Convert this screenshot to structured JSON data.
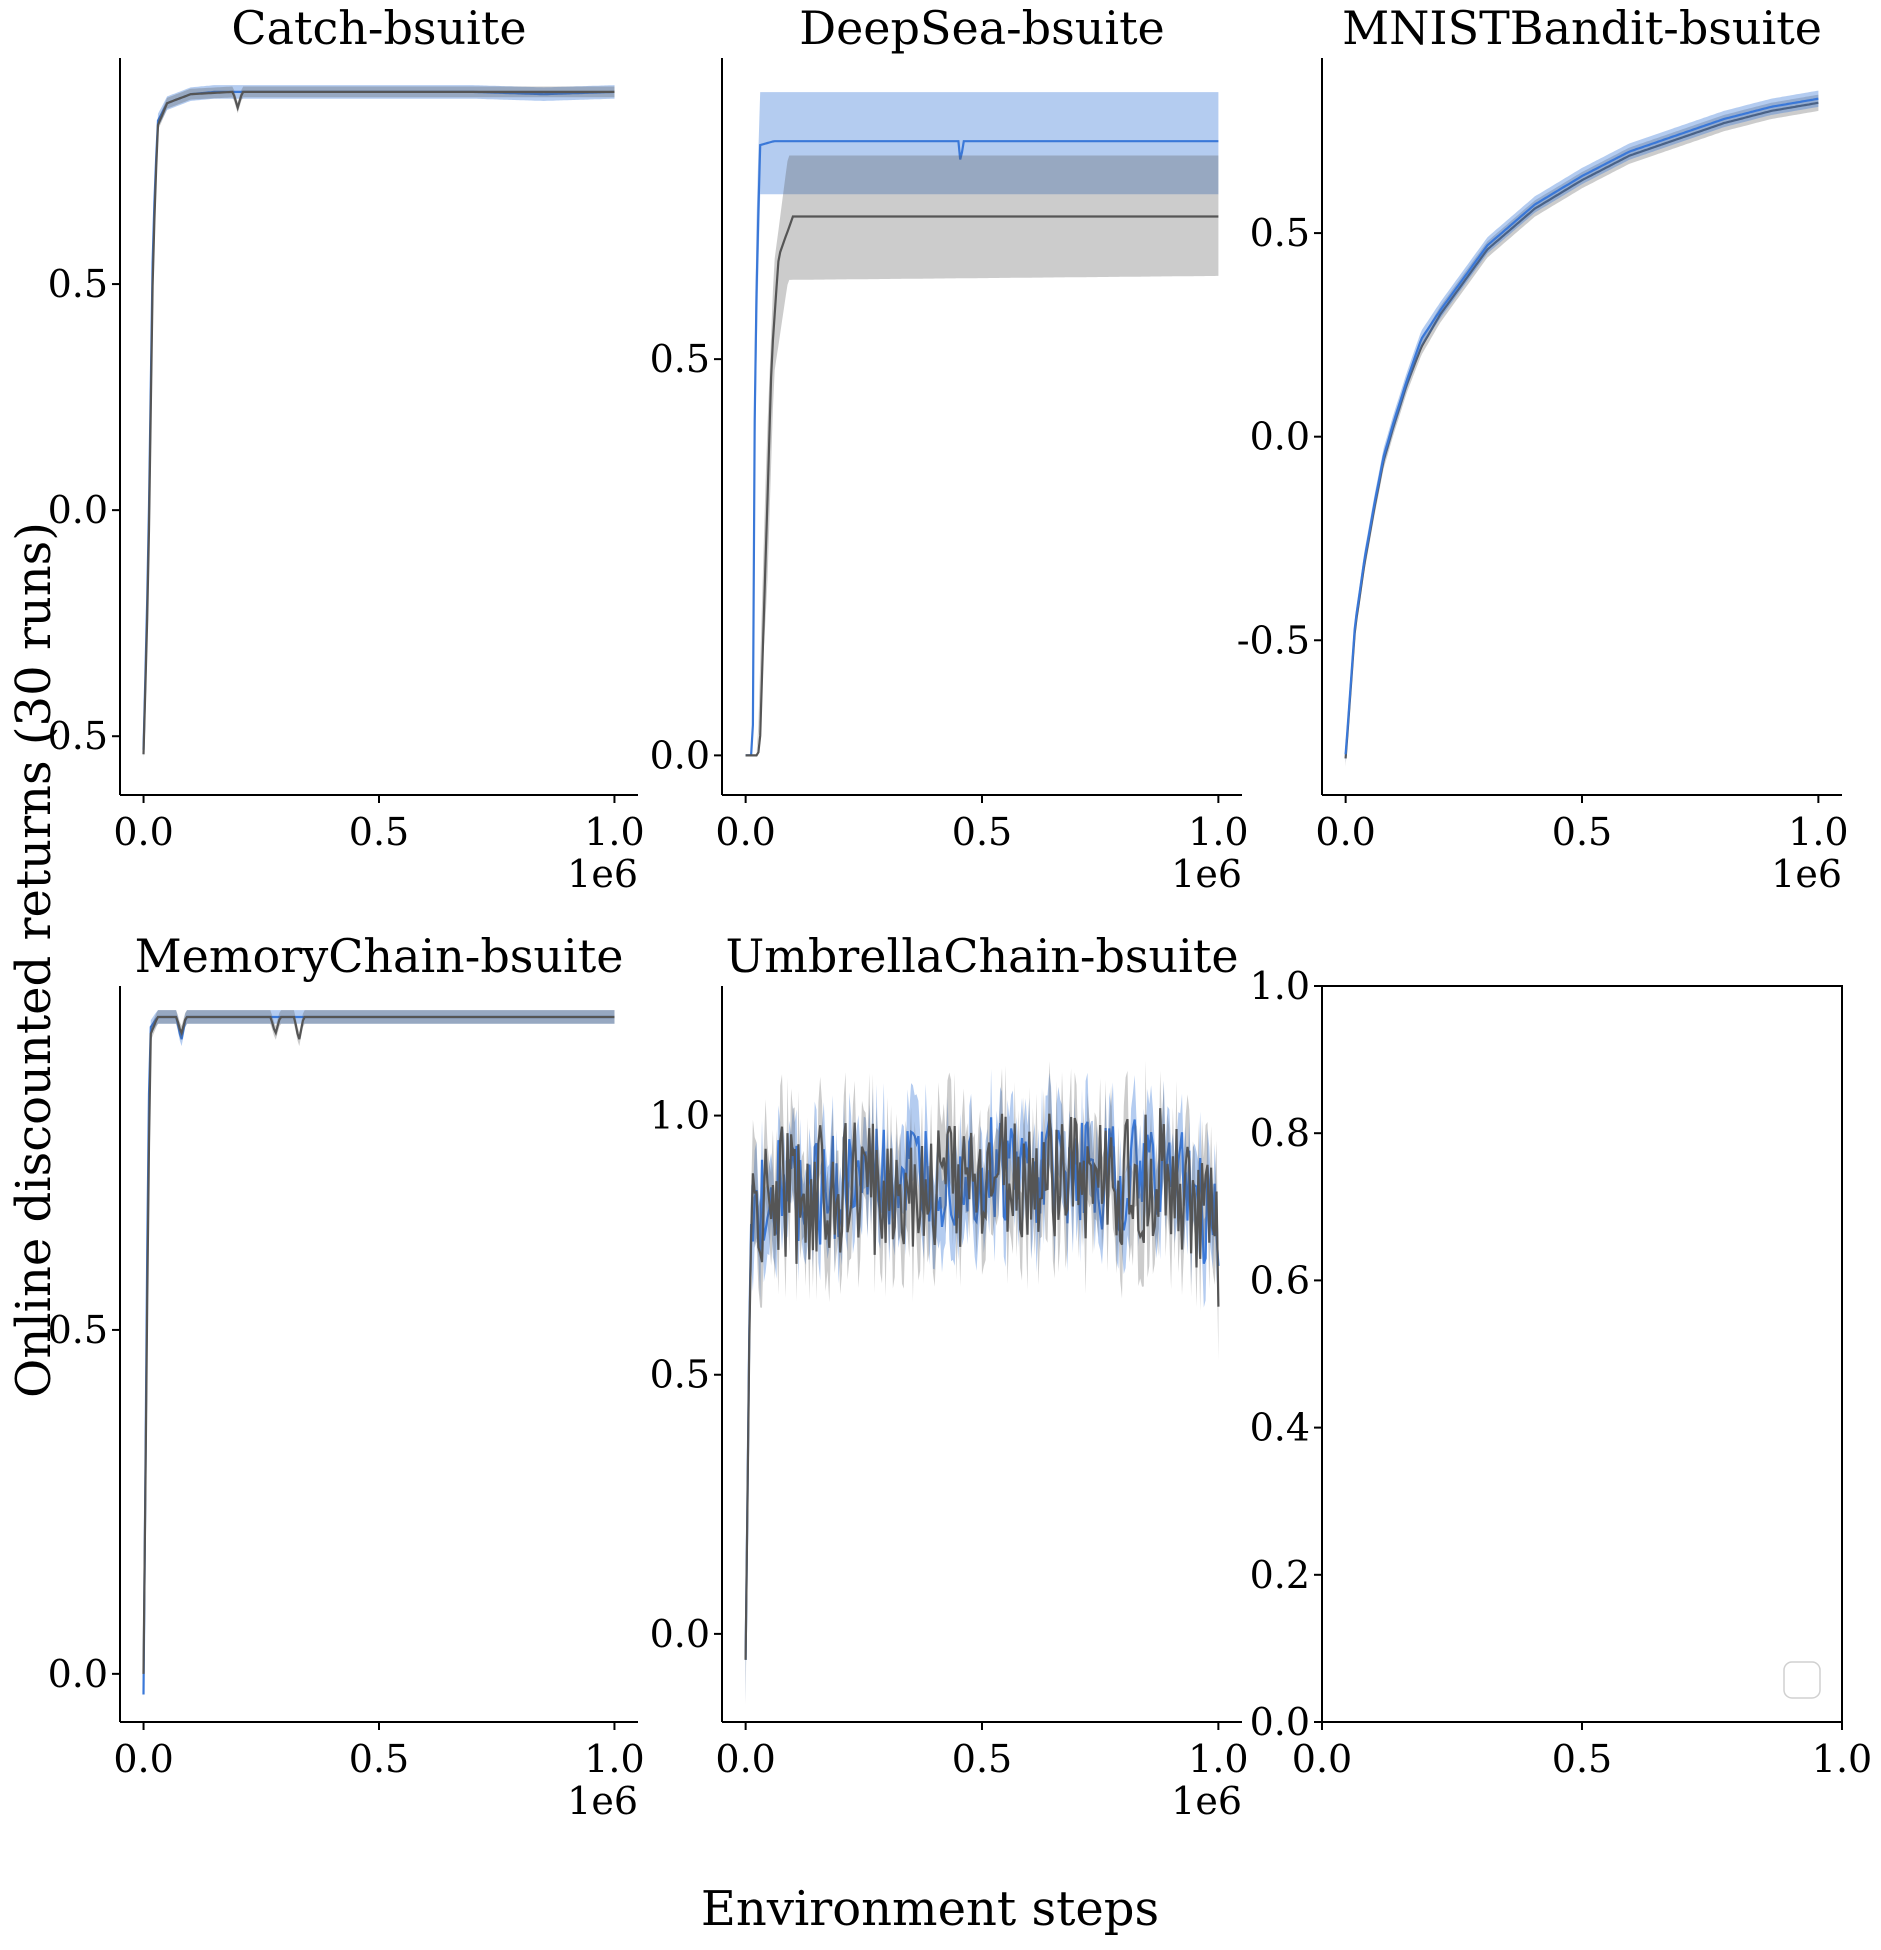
{
  "figure": {
    "xlabel": "Environment steps",
    "ylabel": "Online discounted returns (30 runs)"
  },
  "colors": {
    "blue": "#3a78d8",
    "gray": "#555555"
  },
  "chart_data": [
    {
      "type": "line",
      "title": "Catch-bsuite",
      "xlim": [
        -0.05,
        1.05
      ],
      "ylim": [
        -0.63,
        1.0
      ],
      "xticks": [
        0.0,
        0.5,
        1.0
      ],
      "xtick_labels": [
        "0.0",
        "0.5",
        "1.0"
      ],
      "yticks": [
        -0.5,
        0.0,
        0.5
      ],
      "ytick_labels": [
        "-0.5",
        "0.0",
        "0.5"
      ],
      "x_multiplier": "1e6",
      "series": [
        {
          "color": "blue",
          "points": [
            [
              0.0,
              -0.53
            ],
            [
              0.01,
              -0.1
            ],
            [
              0.02,
              0.6
            ],
            [
              0.03,
              0.86
            ],
            [
              0.05,
              0.9
            ],
            [
              0.1,
              0.92
            ],
            [
              0.15,
              0.925
            ],
            [
              0.2,
              0.925
            ],
            [
              0.3,
              0.925
            ],
            [
              0.5,
              0.925
            ],
            [
              0.7,
              0.925
            ],
            [
              0.85,
              0.92
            ],
            [
              1.0,
              0.925
            ]
          ],
          "band": 0.015
        },
        {
          "color": "gray",
          "points": [
            [
              0.0,
              -0.54
            ],
            [
              0.01,
              -0.15
            ],
            [
              0.02,
              0.55
            ],
            [
              0.03,
              0.85
            ],
            [
              0.05,
              0.9
            ],
            [
              0.1,
              0.92
            ],
            [
              0.19,
              0.925
            ],
            [
              0.2,
              0.89
            ],
            [
              0.21,
              0.925
            ],
            [
              0.3,
              0.925
            ],
            [
              0.5,
              0.925
            ],
            [
              0.7,
              0.925
            ],
            [
              1.0,
              0.925
            ]
          ],
          "band": 0.012
        }
      ]
    },
    {
      "type": "line",
      "title": "DeepSea-bsuite",
      "xlim": [
        -0.05,
        1.05
      ],
      "ylim": [
        -0.05,
        0.88
      ],
      "xticks": [
        0.0,
        0.5,
        1.0
      ],
      "xtick_labels": [
        "0.0",
        "0.5",
        "1.0"
      ],
      "yticks": [
        0.0,
        0.5
      ],
      "ytick_labels": [
        "0.0",
        "0.5"
      ],
      "x_multiplier": "1e6",
      "series": [
        {
          "color": "blue",
          "points": [
            [
              0.0,
              0.0
            ],
            [
              0.015,
              0.0
            ],
            [
              0.02,
              0.5
            ],
            [
              0.03,
              0.77
            ],
            [
              0.06,
              0.775
            ],
            [
              0.45,
              0.775
            ],
            [
              0.455,
              0.745
            ],
            [
              0.46,
              0.775
            ],
            [
              1.0,
              0.775
            ]
          ],
          "band_lo": [
            [
              0.0,
              0.0
            ],
            [
              0.015,
              0.0
            ],
            [
              0.02,
              0.4
            ],
            [
              0.03,
              0.708
            ],
            [
              1.0,
              0.708
            ]
          ],
          "band_hi": [
            [
              0.0,
              0.0
            ],
            [
              0.015,
              0.0
            ],
            [
              0.02,
              0.6
            ],
            [
              0.03,
              0.837
            ],
            [
              1.0,
              0.837
            ]
          ]
        },
        {
          "color": "gray",
          "points": [
            [
              0.0,
              0.0
            ],
            [
              0.025,
              0.0
            ],
            [
              0.03,
              0.01
            ],
            [
              0.045,
              0.3
            ],
            [
              0.055,
              0.5
            ],
            [
              0.07,
              0.63
            ],
            [
              0.1,
              0.68
            ],
            [
              0.3,
              0.68
            ],
            [
              1.0,
              0.68
            ]
          ],
          "band_lo": [
            [
              0.0,
              0.0
            ],
            [
              0.025,
              0.0
            ],
            [
              0.045,
              0.2
            ],
            [
              0.06,
              0.48
            ],
            [
              0.09,
              0.6
            ],
            [
              1.0,
              0.605
            ]
          ],
          "band_hi": [
            [
              0.0,
              0.0
            ],
            [
              0.025,
              0.0
            ],
            [
              0.045,
              0.4
            ],
            [
              0.06,
              0.62
            ],
            [
              0.09,
              0.757
            ],
            [
              1.0,
              0.757
            ]
          ]
        }
      ]
    },
    {
      "type": "line",
      "title": "MNISTBandit-bsuite",
      "xlim": [
        -0.05,
        1.05
      ],
      "ylim": [
        -0.88,
        0.93
      ],
      "xticks": [
        0.0,
        0.5,
        1.0
      ],
      "xtick_labels": [
        "0.0",
        "0.5",
        "1.0"
      ],
      "yticks": [
        -0.5,
        0.0,
        0.5
      ],
      "ytick_labels": [
        "-0.5",
        "0.0",
        "0.5"
      ],
      "x_multiplier": "1e6",
      "series": [
        {
          "color": "gray",
          "points": [
            [
              0.0,
              -0.79
            ],
            [
              0.01,
              -0.63
            ],
            [
              0.02,
              -0.47
            ],
            [
              0.04,
              -0.31
            ],
            [
              0.06,
              -0.18
            ],
            [
              0.08,
              -0.06
            ],
            [
              0.1,
              0.02
            ],
            [
              0.13,
              0.13
            ],
            [
              0.16,
              0.22
            ],
            [
              0.2,
              0.3
            ],
            [
              0.25,
              0.38
            ],
            [
              0.3,
              0.46
            ],
            [
              0.35,
              0.51
            ],
            [
              0.4,
              0.56
            ],
            [
              0.5,
              0.63
            ],
            [
              0.6,
              0.69
            ],
            [
              0.7,
              0.73
            ],
            [
              0.8,
              0.77
            ],
            [
              0.9,
              0.8
            ],
            [
              1.0,
              0.82
            ]
          ],
          "band": 0.02
        },
        {
          "color": "blue",
          "points": [
            [
              0.0,
              -0.78
            ],
            [
              0.01,
              -0.62
            ],
            [
              0.02,
              -0.46
            ],
            [
              0.04,
              -0.3
            ],
            [
              0.06,
              -0.17
            ],
            [
              0.08,
              -0.05
            ],
            [
              0.1,
              0.03
            ],
            [
              0.13,
              0.14
            ],
            [
              0.16,
              0.24
            ],
            [
              0.2,
              0.31
            ],
            [
              0.25,
              0.39
            ],
            [
              0.3,
              0.47
            ],
            [
              0.35,
              0.52
            ],
            [
              0.4,
              0.57
            ],
            [
              0.5,
              0.64
            ],
            [
              0.6,
              0.7
            ],
            [
              0.7,
              0.74
            ],
            [
              0.8,
              0.78
            ],
            [
              0.9,
              0.81
            ],
            [
              1.0,
              0.83
            ]
          ],
          "band": 0.02
        }
      ]
    },
    {
      "type": "line",
      "title": "MemoryChain-bsuite",
      "xlim": [
        -0.05,
        1.05
      ],
      "ylim": [
        -0.07,
        1.0
      ],
      "xticks": [
        0.0,
        0.5,
        1.0
      ],
      "xtick_labels": [
        "0.0",
        "0.5",
        "1.0"
      ],
      "yticks": [
        0.0,
        0.5
      ],
      "ytick_labels": [
        "0.0",
        "0.5"
      ],
      "x_multiplier": "1e6",
      "series": [
        {
          "color": "blue",
          "points": [
            [
              0.0,
              -0.03
            ],
            [
              0.01,
              0.8
            ],
            [
              0.015,
              0.94
            ],
            [
              0.03,
              0.955
            ],
            [
              0.07,
              0.955
            ],
            [
              0.08,
              0.92
            ],
            [
              0.09,
              0.955
            ],
            [
              0.3,
              0.955
            ],
            [
              0.6,
              0.955
            ],
            [
              1.0,
              0.955
            ]
          ],
          "band": 0.01
        },
        {
          "color": "gray",
          "points": [
            [
              0.0,
              0.0
            ],
            [
              0.01,
              0.7
            ],
            [
              0.015,
              0.93
            ],
            [
              0.03,
              0.955
            ],
            [
              0.07,
              0.955
            ],
            [
              0.08,
              0.93
            ],
            [
              0.09,
              0.955
            ],
            [
              0.27,
              0.955
            ],
            [
              0.28,
              0.93
            ],
            [
              0.29,
              0.955
            ],
            [
              0.32,
              0.955
            ],
            [
              0.33,
              0.92
            ],
            [
              0.34,
              0.955
            ],
            [
              0.6,
              0.955
            ],
            [
              1.0,
              0.955
            ]
          ],
          "band": 0.01
        }
      ]
    },
    {
      "type": "line",
      "title": "UmbrellaChain-bsuite",
      "xlim": [
        -0.05,
        1.05
      ],
      "ylim": [
        -0.17,
        1.25
      ],
      "xticks": [
        0.0,
        0.5,
        1.0
      ],
      "xtick_labels": [
        "0.0",
        "0.5",
        "1.0"
      ],
      "yticks": [
        0.0,
        0.5,
        1.0
      ],
      "ytick_labels": [
        "0.0",
        "0.5",
        "1.0"
      ],
      "x_multiplier": "1e6",
      "series": [
        {
          "color": "blue",
          "points": [
            [
              0.0,
              -0.05
            ],
            [
              0.01,
              0.78
            ],
            [
              0.02,
              0.85
            ],
            [
              0.04,
              0.82
            ],
            [
              0.06,
              0.88
            ],
            [
              0.1,
              0.84
            ],
            [
              0.2,
              0.86
            ],
            [
              0.3,
              0.87
            ],
            [
              0.4,
              0.88
            ],
            [
              0.5,
              0.89
            ],
            [
              0.6,
              0.88
            ],
            [
              0.7,
              0.89
            ],
            [
              0.8,
              0.88
            ],
            [
              0.9,
              0.9
            ],
            [
              1.0,
              0.78
            ]
          ],
          "band": 0.08,
          "noise": 0.11
        },
        {
          "color": "gray",
          "points": [
            [
              0.0,
              -0.05
            ],
            [
              0.01,
              0.75
            ],
            [
              0.02,
              0.84
            ],
            [
              0.04,
              0.81
            ],
            [
              0.06,
              0.87
            ],
            [
              0.1,
              0.84
            ],
            [
              0.2,
              0.86
            ],
            [
              0.3,
              0.86
            ],
            [
              0.4,
              0.87
            ],
            [
              0.5,
              0.88
            ],
            [
              0.6,
              0.87
            ],
            [
              0.7,
              0.88
            ],
            [
              0.8,
              0.87
            ],
            [
              0.9,
              0.89
            ],
            [
              1.0,
              0.75
            ]
          ],
          "band": 0.09,
          "noise": 0.13
        }
      ]
    },
    {
      "type": "line",
      "title": "",
      "xlim": [
        0.0,
        1.0
      ],
      "ylim": [
        0.0,
        1.0
      ],
      "xticks": [
        0.0,
        0.5,
        1.0
      ],
      "xtick_labels": [
        "0.0",
        "0.5",
        "1.0"
      ],
      "yticks": [
        0.0,
        0.2,
        0.4,
        0.6,
        0.8,
        1.0
      ],
      "ytick_labels": [
        "0.0",
        "0.2",
        "0.4",
        "0.6",
        "0.8",
        "1.0"
      ],
      "x_multiplier": "",
      "legend": "lower-right",
      "series": []
    }
  ]
}
